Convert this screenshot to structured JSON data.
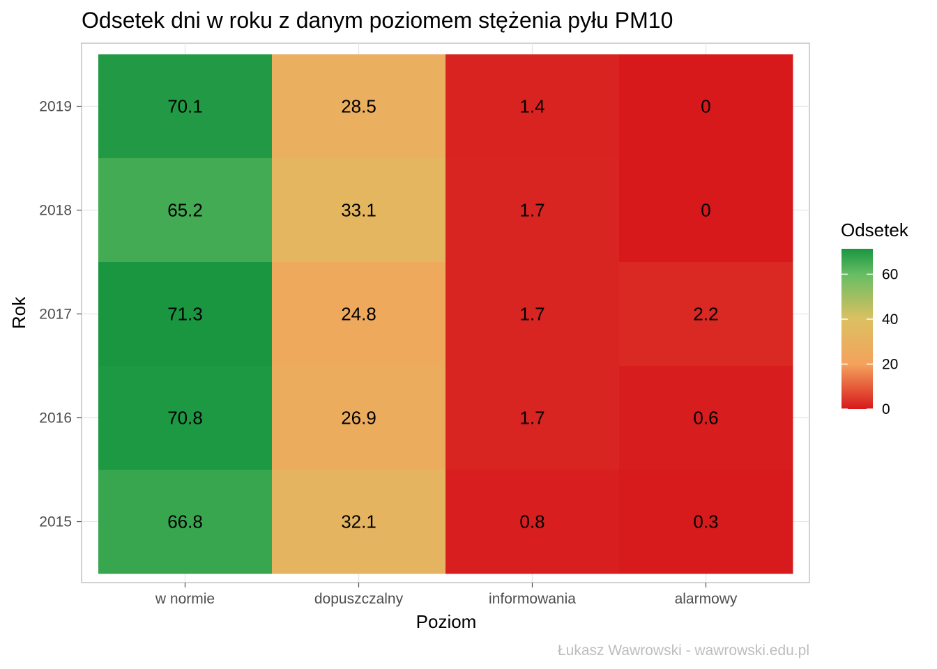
{
  "chart_data": {
    "type": "heatmap",
    "title": "Odsetek dni w roku z danym poziomem stężenia pyłu PM10",
    "xlabel": "Poziom",
    "ylabel": "Rok",
    "categories": [
      "w normie",
      "dopuszczalny",
      "informowania",
      "alarmowy"
    ],
    "years": [
      "2015",
      "2016",
      "2017",
      "2018",
      "2019"
    ],
    "values": {
      "2019": [
        70.1,
        28.5,
        1.4,
        0
      ],
      "2018": [
        65.2,
        33.1,
        1.7,
        0
      ],
      "2017": [
        71.3,
        24.8,
        1.7,
        2.2
      ],
      "2016": [
        70.8,
        26.9,
        1.7,
        0.6
      ],
      "2015": [
        66.8,
        32.1,
        0.8,
        0.3
      ]
    },
    "value_labels": {
      "2019": [
        "70.1",
        "28.5",
        "1.4",
        "0"
      ],
      "2018": [
        "65.2",
        "33.1",
        "1.7",
        "0"
      ],
      "2017": [
        "71.3",
        "24.8",
        "1.7",
        "2.2"
      ],
      "2016": [
        "70.8",
        "26.9",
        "1.7",
        "0.6"
      ],
      "2015": [
        "66.8",
        "32.1",
        "0.8",
        "0.3"
      ]
    },
    "legend": {
      "title": "Odsetek",
      "ticks": [
        60,
        40,
        20,
        0
      ],
      "tick_labels": [
        "60",
        "40",
        "20",
        "0"
      ],
      "range": [
        0,
        71.3
      ],
      "placement": "right"
    },
    "colorscale": [
      [
        0,
        "#d7191c"
      ],
      [
        20,
        "#f4a25c"
      ],
      [
        40,
        "#dcc062"
      ],
      [
        60,
        "#66bd63"
      ],
      [
        71.3,
        "#1a9641"
      ]
    ],
    "grid": true
  },
  "caption": "Łukasz Wawrowski - wawrowski.edu.pl"
}
